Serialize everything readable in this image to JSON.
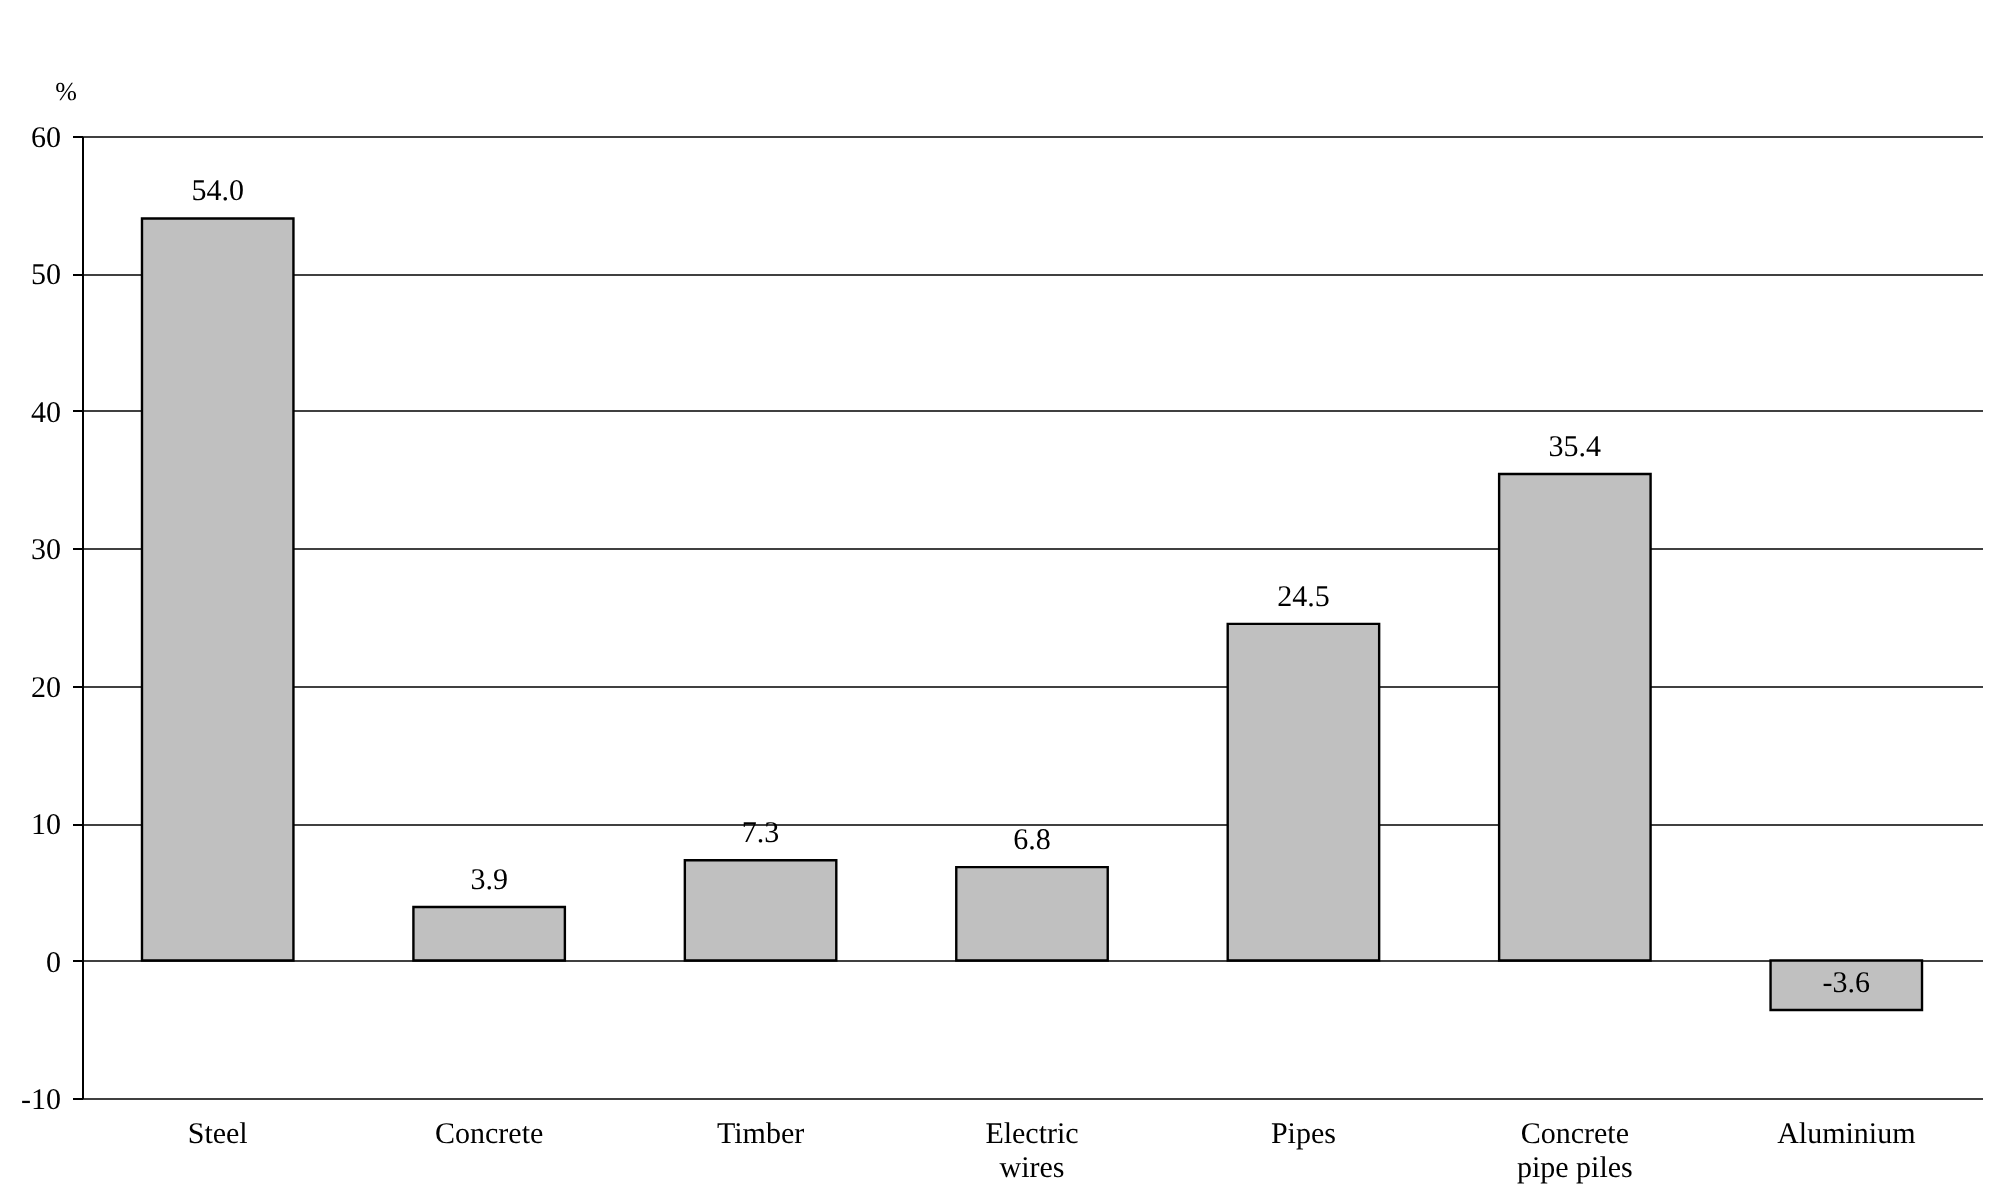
{
  "chart_data": {
    "type": "bar",
    "ylabel": "%",
    "categories": [
      "Steel",
      "Concrete",
      "Timber",
      "Electric wires",
      "Pipes",
      "Concrete pipe piles",
      "Aluminium"
    ],
    "values": [
      54.0,
      3.9,
      7.3,
      6.8,
      24.5,
      35.4,
      -3.6
    ],
    "value_labels": [
      "54.0",
      "3.9",
      "7.3",
      "6.8",
      "24.5",
      "35.4",
      "-3.6"
    ],
    "color": "#c0c0c0",
    "ylim": [
      -10,
      60
    ],
    "yticks": [
      -10,
      0,
      10,
      20,
      30,
      40,
      50,
      60
    ],
    "grid": "y"
  }
}
